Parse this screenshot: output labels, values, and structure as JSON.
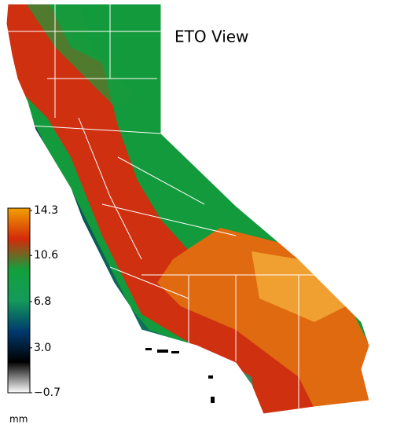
{
  "title": "ETO View",
  "colorbar": {
    "unit": "mm",
    "lim": [
      -0.7,
      14.3
    ],
    "ticks": [
      {
        "value": -0.7,
        "label": "−0.7"
      },
      {
        "value": 3.0,
        "label": "3.0"
      },
      6.8,
      10.6,
      14.3
    ],
    "colors": [
      "#ffffff",
      "#000000",
      "#003a6e",
      "#149a5a",
      "#12a03c",
      "#d52a0a",
      "#f0a000"
    ]
  }
}
